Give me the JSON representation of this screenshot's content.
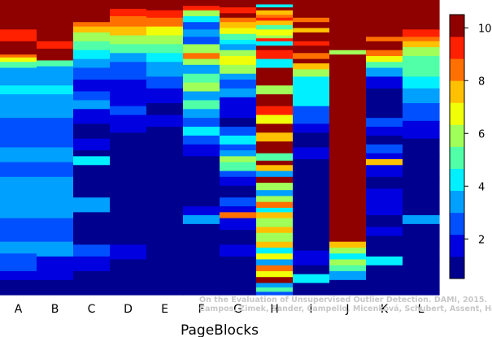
{
  "chart_data": {
    "type": "heatmap",
    "xlabel": "PageBlocks",
    "categories": [
      "A",
      "B",
      "C",
      "D",
      "E",
      "F",
      "G",
      "H",
      "I",
      "J",
      "K",
      "L"
    ],
    "color_scale": {
      "min": 0.5,
      "max": 10.5,
      "ticks": [
        2,
        4,
        6,
        8,
        10
      ],
      "colors": [
        "#00008f",
        "#0000e0",
        "#0050ff",
        "#00a0ff",
        "#00f0ff",
        "#50ffa8",
        "#a0ff58",
        "#f0ff08",
        "#ffc000",
        "#ff7000",
        "#ff2000",
        "#8f0000"
      ]
    },
    "columns": [
      {
        "name": "A",
        "segments": [
          [
            10.5,
            0
          ],
          [
            9.3,
            0.1
          ],
          [
            10.5,
            0.14
          ],
          [
            10,
            0.155
          ],
          [
            8.6,
            0.185
          ],
          [
            7,
            0.195
          ],
          [
            4.8,
            0.21
          ],
          [
            3.5,
            0.23
          ],
          [
            3.2,
            0.26
          ],
          [
            4.3,
            0.29
          ],
          [
            3.4,
            0.32
          ],
          [
            2.3,
            0.4
          ],
          [
            2.9,
            0.44
          ],
          [
            2.6,
            0.46
          ],
          [
            3.3,
            0.5
          ],
          [
            2.5,
            0.55
          ],
          [
            3.8,
            0.6
          ],
          [
            3.2,
            0.66
          ],
          [
            2.8,
            0.74
          ],
          [
            3.4,
            0.82
          ],
          [
            2.4,
            0.86
          ],
          [
            1.4,
            0.92
          ],
          [
            0.9,
            0.95
          ],
          [
            0.6,
            0.98
          ]
        ]
      },
      {
        "name": "B",
        "segments": [
          [
            10.5,
            0
          ],
          [
            9.3,
            0.14
          ],
          [
            10.5,
            0.165
          ],
          [
            10,
            0.18
          ],
          [
            5.4,
            0.205
          ],
          [
            3.6,
            0.225
          ],
          [
            3.3,
            0.26
          ],
          [
            4.3,
            0.29
          ],
          [
            3.4,
            0.32
          ],
          [
            2.3,
            0.4
          ],
          [
            2.9,
            0.44
          ],
          [
            3.3,
            0.5
          ],
          [
            2.6,
            0.55
          ],
          [
            3.8,
            0.6
          ],
          [
            3.2,
            0.66
          ],
          [
            2.8,
            0.74
          ],
          [
            3.4,
            0.82
          ],
          [
            1.8,
            0.87
          ],
          [
            1.4,
            0.92
          ],
          [
            0.9,
            0.95
          ],
          [
            0.6,
            0.98
          ]
        ]
      },
      {
        "name": "C",
        "segments": [
          [
            10.5,
            0
          ],
          [
            9.8,
            0.045
          ],
          [
            10.5,
            0.06
          ],
          [
            8.6,
            0.075
          ],
          [
            7.2,
            0.09
          ],
          [
            6.3,
            0.11
          ],
          [
            5.2,
            0.14
          ],
          [
            4.4,
            0.17
          ],
          [
            3.3,
            0.2
          ],
          [
            2.3,
            0.23
          ],
          [
            1.4,
            0.27
          ],
          [
            2.6,
            0.31
          ],
          [
            3.8,
            0.34
          ],
          [
            1.7,
            0.37
          ],
          [
            0.8,
            0.42
          ],
          [
            1.5,
            0.47
          ],
          [
            0.8,
            0.51
          ],
          [
            4.2,
            0.53
          ],
          [
            1.3,
            0.56
          ],
          [
            0.7,
            0.62
          ],
          [
            3.2,
            0.67
          ],
          [
            1.3,
            0.72
          ],
          [
            0.7,
            0.79
          ],
          [
            2.2,
            0.83
          ],
          [
            1.6,
            0.87
          ],
          [
            0.8,
            0.92
          ],
          [
            0.6,
            0.96
          ]
        ]
      },
      {
        "name": "D",
        "segments": [
          [
            10.5,
            0
          ],
          [
            9.3,
            0.03
          ],
          [
            8.5,
            0.055
          ],
          [
            7.2,
            0.09
          ],
          [
            6,
            0.12
          ],
          [
            4.8,
            0.15
          ],
          [
            3.8,
            0.18
          ],
          [
            2.6,
            0.21
          ],
          [
            1.6,
            0.27
          ],
          [
            1.9,
            0.3
          ],
          [
            2.6,
            0.36
          ],
          [
            1.5,
            0.39
          ],
          [
            0.7,
            0.45
          ],
          [
            1.3,
            0.52
          ],
          [
            0.7,
            0.57
          ],
          [
            0.6,
            0.63
          ],
          [
            1.3,
            0.7
          ],
          [
            0.7,
            0.76
          ],
          [
            1.5,
            0.83
          ],
          [
            0.9,
            0.88
          ],
          [
            0.6,
            0.94
          ]
        ]
      },
      {
        "name": "E",
        "segments": [
          [
            10.5,
            0
          ],
          [
            9.3,
            0.035
          ],
          [
            8.2,
            0.06
          ],
          [
            7,
            0.09
          ],
          [
            6.1,
            0.12
          ],
          [
            5,
            0.15
          ],
          [
            4.3,
            0.18
          ],
          [
            3.2,
            0.21
          ],
          [
            2.4,
            0.26
          ],
          [
            1.7,
            0.3
          ],
          [
            1.1,
            0.35
          ],
          [
            1.9,
            0.39
          ],
          [
            1,
            0.43
          ],
          [
            0.7,
            0.5
          ],
          [
            0.6,
            0.57
          ],
          [
            1.2,
            0.62
          ],
          [
            0.6,
            0.69
          ],
          [
            0.7,
            0.78
          ],
          [
            0.6,
            0.86
          ],
          [
            0.5,
            0.93
          ]
        ]
      },
      {
        "name": "F",
        "segments": [
          [
            10.5,
            0
          ],
          [
            9.6,
            0.02
          ],
          [
            5.8,
            0.035
          ],
          [
            4.2,
            0.055
          ],
          [
            2.8,
            0.075
          ],
          [
            3.6,
            0.1
          ],
          [
            2.3,
            0.125
          ],
          [
            5.6,
            0.15
          ],
          [
            8.2,
            0.18
          ],
          [
            6.2,
            0.2
          ],
          [
            3.3,
            0.22
          ],
          [
            4.9,
            0.25
          ],
          [
            6.3,
            0.28
          ],
          [
            3.6,
            0.31
          ],
          [
            5.4,
            0.34
          ],
          [
            3.1,
            0.37
          ],
          [
            2.3,
            0.4
          ],
          [
            4.6,
            0.43
          ],
          [
            2.3,
            0.46
          ],
          [
            1.6,
            0.49
          ],
          [
            0.7,
            0.53
          ],
          [
            0.6,
            0.59
          ],
          [
            0.7,
            0.65
          ],
          [
            1.4,
            0.7
          ],
          [
            3.5,
            0.73
          ],
          [
            0.9,
            0.76
          ],
          [
            0.6,
            0.84
          ],
          [
            1.1,
            0.9
          ],
          [
            0.6,
            0.93
          ]
        ]
      },
      {
        "name": "G",
        "segments": [
          [
            10.5,
            0
          ],
          [
            9.5,
            0.025
          ],
          [
            10.5,
            0.045
          ],
          [
            8.8,
            0.06
          ],
          [
            7.6,
            0.075
          ],
          [
            6.8,
            0.095
          ],
          [
            5.2,
            0.115
          ],
          [
            4.4,
            0.135
          ],
          [
            3.4,
            0.15
          ],
          [
            6.2,
            0.17
          ],
          [
            7.1,
            0.19
          ],
          [
            5.5,
            0.22
          ],
          [
            3.6,
            0.25
          ],
          [
            2.6,
            0.27
          ],
          [
            3.4,
            0.3
          ],
          [
            2.1,
            0.33
          ],
          [
            1.5,
            0.36
          ],
          [
            1,
            0.4
          ],
          [
            2.3,
            0.43
          ],
          [
            4,
            0.46
          ],
          [
            2.6,
            0.49
          ],
          [
            3.3,
            0.51
          ],
          [
            6,
            0.53
          ],
          [
            4.7,
            0.55
          ],
          [
            2.2,
            0.58
          ],
          [
            1.8,
            0.6
          ],
          [
            1,
            0.63
          ],
          [
            2.8,
            0.67
          ],
          [
            1.4,
            0.7
          ],
          [
            8.4,
            0.72
          ],
          [
            1.8,
            0.74
          ],
          [
            1.1,
            0.78
          ],
          [
            1.4,
            0.83
          ],
          [
            0.8,
            0.87
          ],
          [
            0.6,
            0.93
          ]
        ]
      },
      {
        "name": "H",
        "segments": [
          [
            10.5,
            0
          ],
          [
            4.6,
            0.015
          ],
          [
            10.5,
            0.025
          ],
          [
            7.3,
            0.035
          ],
          [
            8.8,
            0.05
          ],
          [
            9.6,
            0.06
          ],
          [
            7.3,
            0.07
          ],
          [
            5.3,
            0.085
          ],
          [
            6.6,
            0.1
          ],
          [
            5.7,
            0.12
          ],
          [
            9.4,
            0.13
          ],
          [
            4,
            0.14
          ],
          [
            10.5,
            0.155
          ],
          [
            9.3,
            0.17
          ],
          [
            4.2,
            0.2
          ],
          [
            10.5,
            0.23
          ],
          [
            6.2,
            0.29
          ],
          [
            10.5,
            0.32
          ],
          [
            9.3,
            0.36
          ],
          [
            6.9,
            0.39
          ],
          [
            10.5,
            0.42
          ],
          [
            7.3,
            0.45
          ],
          [
            10.5,
            0.48
          ],
          [
            5.3,
            0.52
          ],
          [
            10.5,
            0.545
          ],
          [
            7.3,
            0.56
          ],
          [
            3.8,
            0.58
          ],
          [
            10.5,
            0.6
          ],
          [
            5.7,
            0.62
          ],
          [
            3.4,
            0.645
          ],
          [
            6.3,
            0.665
          ],
          [
            8.6,
            0.685
          ],
          [
            3.9,
            0.705
          ],
          [
            7.3,
            0.72
          ],
          [
            5.5,
            0.74
          ],
          [
            7.6,
            0.77
          ],
          [
            6.3,
            0.79
          ],
          [
            7.3,
            0.82
          ],
          [
            4.6,
            0.84
          ],
          [
            6.9,
            0.86
          ],
          [
            3.6,
            0.88
          ],
          [
            8.2,
            0.9
          ],
          [
            6.5,
            0.92
          ],
          [
            10.5,
            0.94
          ],
          [
            3.4,
            0.96
          ],
          [
            5.1,
            0.975
          ],
          [
            2.6,
            0.99
          ]
        ]
      },
      {
        "name": "I",
        "segments": [
          [
            10.5,
            0
          ],
          [
            8.6,
            0.06
          ],
          [
            10.5,
            0.075
          ],
          [
            7.2,
            0.095
          ],
          [
            10.5,
            0.11
          ],
          [
            9.3,
            0.14
          ],
          [
            10.5,
            0.155
          ],
          [
            8.8,
            0.18
          ],
          [
            10.5,
            0.2
          ],
          [
            7.4,
            0.215
          ],
          [
            6.3,
            0.235
          ],
          [
            4.6,
            0.26
          ],
          [
            3.9,
            0.29
          ],
          [
            4.6,
            0.33
          ],
          [
            2.8,
            0.36
          ],
          [
            2.2,
            0.39
          ],
          [
            1.5,
            0.42
          ],
          [
            0.7,
            0.45
          ],
          [
            1.4,
            0.5
          ],
          [
            0.7,
            0.54
          ],
          [
            0.6,
            0.6
          ],
          [
            1.3,
            0.68
          ],
          [
            0.6,
            0.76
          ],
          [
            1.4,
            0.85
          ],
          [
            0.8,
            0.9
          ],
          [
            4.4,
            0.93
          ],
          [
            0.6,
            0.96
          ]
        ]
      },
      {
        "name": "J",
        "segments": [
          [
            10.5,
            0
          ],
          [
            5.6,
            0.17
          ],
          [
            10.5,
            0.185
          ],
          [
            9.7,
            0.68
          ],
          [
            10.5,
            0.7
          ],
          [
            7.4,
            0.82
          ],
          [
            5.7,
            0.84
          ],
          [
            4.3,
            0.86
          ],
          [
            6.2,
            0.88
          ],
          [
            4.7,
            0.9
          ],
          [
            3.4,
            0.92
          ],
          [
            1.2,
            0.95
          ],
          [
            0.6,
            0.98
          ]
        ]
      },
      {
        "name": "K",
        "segments": [
          [
            10.5,
            0
          ],
          [
            8.5,
            0.125
          ],
          [
            10.5,
            0.14
          ],
          [
            9.8,
            0.155
          ],
          [
            8,
            0.17
          ],
          [
            6.4,
            0.19
          ],
          [
            5.2,
            0.21
          ],
          [
            3.3,
            0.23
          ],
          [
            1.8,
            0.26
          ],
          [
            1.1,
            0.3
          ],
          [
            0.8,
            0.35
          ],
          [
            2.4,
            0.4
          ],
          [
            1.8,
            0.43
          ],
          [
            1.1,
            0.46
          ],
          [
            2.6,
            0.49
          ],
          [
            1.4,
            0.52
          ],
          [
            7.6,
            0.54
          ],
          [
            1.5,
            0.56
          ],
          [
            0.8,
            0.6
          ],
          [
            2,
            0.64
          ],
          [
            1.4,
            0.68
          ],
          [
            0.7,
            0.73
          ],
          [
            1.8,
            0.77
          ],
          [
            1.1,
            0.8
          ],
          [
            0.7,
            0.84
          ],
          [
            4.1,
            0.87
          ],
          [
            1.3,
            0.9
          ],
          [
            0.6,
            0.94
          ]
        ]
      },
      {
        "name": "L",
        "segments": [
          [
            10.5,
            0
          ],
          [
            9.3,
            0.1
          ],
          [
            8.6,
            0.125
          ],
          [
            7.2,
            0.14
          ],
          [
            6,
            0.16
          ],
          [
            5.4,
            0.19
          ],
          [
            4.8,
            0.22
          ],
          [
            4,
            0.26
          ],
          [
            3.3,
            0.3
          ],
          [
            2.4,
            0.35
          ],
          [
            1.7,
            0.41
          ],
          [
            1.2,
            0.47
          ],
          [
            0.9,
            0.53
          ],
          [
            1.2,
            0.6
          ],
          [
            0.7,
            0.67
          ],
          [
            3.2,
            0.73
          ],
          [
            0.7,
            0.76
          ],
          [
            1.2,
            0.83
          ],
          [
            0.6,
            0.88
          ]
        ]
      }
    ]
  },
  "watermark": {
    "line1": "On the Evaluation of Unsupervised Outlier Detection. DAMI, 2015.",
    "line2": "Campos, Zimek, Sander, Campello, Micenková, Schubert, Assent, Houle"
  }
}
